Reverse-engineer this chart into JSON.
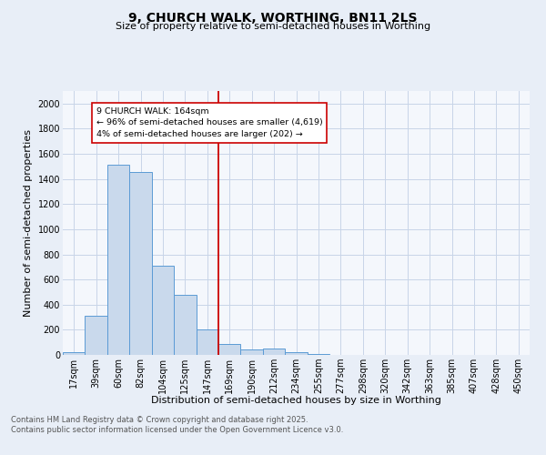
{
  "title": "9, CHURCH WALK, WORTHING, BN11 2LS",
  "subtitle": "Size of property relative to semi-detached houses in Worthing",
  "xlabel": "Distribution of semi-detached houses by size in Worthing",
  "ylabel": "Number of semi-detached properties",
  "bin_labels": [
    "17sqm",
    "39sqm",
    "60sqm",
    "82sqm",
    "104sqm",
    "125sqm",
    "147sqm",
    "169sqm",
    "190sqm",
    "212sqm",
    "234sqm",
    "255sqm",
    "277sqm",
    "298sqm",
    "320sqm",
    "342sqm",
    "363sqm",
    "385sqm",
    "407sqm",
    "428sqm",
    "450sqm"
  ],
  "bar_values": [
    20,
    310,
    1510,
    1455,
    710,
    480,
    200,
    85,
    45,
    50,
    20,
    5,
    0,
    0,
    0,
    0,
    0,
    0,
    0,
    0,
    0
  ],
  "bar_color": "#c9d9ec",
  "bar_edge_color": "#5b9bd5",
  "vline_position": 6.5,
  "vline_color": "#cc0000",
  "annotation_text": "9 CHURCH WALK: 164sqm\n← 96% of semi-detached houses are smaller (4,619)\n4% of semi-detached houses are larger (202) →",
  "annotation_box_color": "#ffffff",
  "annotation_box_edge_color": "#cc0000",
  "ylim": [
    0,
    2100
  ],
  "yticks": [
    0,
    200,
    400,
    600,
    800,
    1000,
    1200,
    1400,
    1600,
    1800,
    2000
  ],
  "footer": "Contains HM Land Registry data © Crown copyright and database right 2025.\nContains public sector information licensed under the Open Government Licence v3.0.",
  "bg_color": "#e8eef7",
  "plot_bg_color": "#f4f7fc",
  "grid_color": "#c8d4e8",
  "title_fontsize": 10,
  "subtitle_fontsize": 8,
  "ylabel_fontsize": 8,
  "xlabel_fontsize": 8,
  "tick_fontsize": 7,
  "footer_fontsize": 6
}
